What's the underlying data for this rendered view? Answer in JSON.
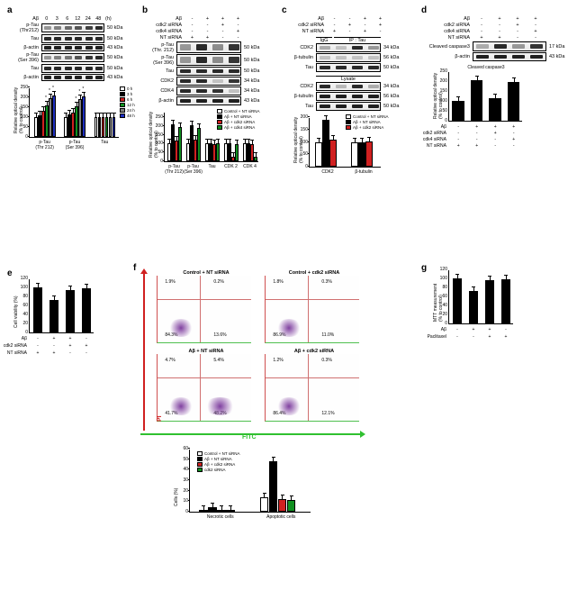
{
  "colors": {
    "white": "#ffffff",
    "black": "#000000",
    "red": "#d02020",
    "green": "#109020",
    "gray": "#808080",
    "blue": "#2030c0",
    "purple": "#8040a0",
    "lime": "#30c030"
  },
  "a": {
    "label": "a",
    "time_header": {
      "label": "Aβ",
      "values": [
        "0",
        "3",
        "6",
        "12",
        "24",
        "48"
      ],
      "unit": "(h)"
    },
    "blots": [
      {
        "label": "p-Tau\n(Thr212)",
        "mw": "50 kDa",
        "height": 10,
        "bands": [
          0.4,
          0.5,
          0.6,
          0.7,
          0.8,
          0.9
        ]
      },
      {
        "label": "Tau",
        "mw": "50 kDa",
        "height": 10,
        "bands": [
          0.9,
          0.9,
          0.9,
          0.9,
          0.9,
          0.9
        ]
      },
      {
        "label": "β-actin",
        "mw": "43 kDa",
        "height": 8,
        "bands": [
          0.95,
          0.95,
          0.95,
          0.95,
          0.95,
          0.95
        ]
      },
      {
        "label": "p-Tau\n(Ser 396)",
        "mw": "50 kDa",
        "height": 10,
        "bands": [
          0.4,
          0.5,
          0.55,
          0.7,
          0.85,
          0.9
        ]
      },
      {
        "label": "Tau",
        "mw": "50 kDa",
        "height": 10,
        "bands": [
          0.9,
          0.9,
          0.9,
          0.9,
          0.9,
          0.9
        ]
      },
      {
        "label": "β-actin",
        "mw": "43 kDa",
        "height": 8,
        "bands": [
          0.95,
          0.95,
          0.95,
          0.95,
          0.95,
          0.95
        ]
      }
    ],
    "chart": {
      "ylabel": "Relative optical density\n(% to control)",
      "ymax": 250,
      "ystep": 50,
      "groups": [
        "p-Tau\n(Thr 212)",
        "p-Tau\n(Ser 396)",
        "Tau"
      ],
      "legend": [
        "0 h",
        "3 h",
        "6 h",
        "12 h",
        "24 h",
        "48 h"
      ],
      "legend_colors": [
        "#ffffff",
        "#000000",
        "#d02020",
        "#109020",
        "#808080",
        "#2030c0"
      ],
      "data": [
        [
          100,
          110,
          130,
          160,
          195,
          210
        ],
        [
          100,
          115,
          125,
          155,
          190,
          205
        ],
        [
          100,
          98,
          102,
          100,
          99,
          101
        ]
      ],
      "sig": [
        [
          0,
          0,
          0,
          1,
          1,
          1
        ],
        [
          0,
          0,
          0,
          1,
          1,
          1
        ],
        [
          0,
          0,
          0,
          0,
          0,
          0
        ]
      ]
    }
  },
  "b": {
    "label": "b",
    "headers": [
      {
        "label": "Aβ",
        "vals": [
          "-",
          "+",
          "+",
          "+"
        ]
      },
      {
        "label": "cdk2 siRNA",
        "vals": [
          "-",
          "-",
          "+",
          "-"
        ]
      },
      {
        "label": "cdk4 siRNA",
        "vals": [
          "-",
          "-",
          "-",
          "+"
        ]
      },
      {
        "label": "NT siRNA",
        "vals": [
          "+",
          "+",
          "-",
          "-"
        ]
      }
    ],
    "blots": [
      {
        "label": "p-Tau\n(Thr. 212)",
        "mw": "50 kDa",
        "height": 13,
        "bands": [
          0.4,
          0.9,
          0.45,
          0.85
        ]
      },
      {
        "label": "p-Tau\n(Ser 396)",
        "mw": "50 kDa",
        "height": 13,
        "bands": [
          0.4,
          0.9,
          0.45,
          0.85
        ]
      },
      {
        "label": "Tau",
        "mw": "50 kDa",
        "height": 10,
        "bands": [
          0.9,
          0.9,
          0.9,
          0.9
        ]
      },
      {
        "label": "CDK2",
        "mw": "34 kDa",
        "height": 10,
        "bands": [
          0.9,
          0.9,
          0.2,
          0.85
        ]
      },
      {
        "label": "CDK4",
        "mw": "34 kDa",
        "height": 10,
        "bands": [
          0.9,
          0.9,
          0.85,
          0.2
        ]
      },
      {
        "label": "β-actin",
        "mw": "43 kDa",
        "height": 10,
        "bands": [
          0.95,
          0.95,
          0.95,
          0.95
        ]
      }
    ],
    "chart": {
      "ylabel": "Relative optical density\n(% to control)",
      "ymax": 280,
      "ystep": 50,
      "groups": [
        "p-Tau\n(Thr 212)",
        "p-Tau\n(Ser 396)",
        "Tau",
        "CDK 2",
        "CDK 4"
      ],
      "legend": [
        "Control + NT siRNA",
        "Aβ + NT siRNA",
        "Aβ + cdk2 siRNA",
        "Aβ + cdk4 siRNA"
      ],
      "legend_colors": [
        "#ffffff",
        "#000000",
        "#d02020",
        "#109020"
      ],
      "data": [
        [
          100,
          210,
          115,
          195
        ],
        [
          100,
          205,
          120,
          190
        ],
        [
          100,
          100,
          98,
          101
        ],
        [
          100,
          102,
          25,
          98
        ],
        [
          100,
          100,
          97,
          24
        ]
      ]
    }
  },
  "c": {
    "label": "c",
    "headers": [
      {
        "label": "Aβ",
        "vals": [
          "-",
          "-",
          "+",
          "+"
        ]
      },
      {
        "label": "cdk2 siRNA",
        "vals": [
          "-",
          "+",
          "-",
          "+"
        ]
      },
      {
        "label": "NT siRNA",
        "vals": [
          "+",
          "-",
          "+",
          "-"
        ]
      }
    ],
    "ip_header": {
      "left": "IgG",
      "right": "IP : Tau"
    },
    "ip_blots": [
      {
        "label": "CDK2",
        "mw": "34 kDa",
        "height": 10,
        "bands": [
          0.3,
          0.2,
          0.9,
          0.4
        ]
      },
      {
        "label": "β-tubulin",
        "mw": "56 kDa",
        "height": 10,
        "bands": [
          0.2,
          0.2,
          0.2,
          0.2
        ]
      },
      {
        "label": "Tau",
        "mw": "50 kDa",
        "height": 10,
        "bands": [
          0.9,
          0.9,
          0.9,
          0.9
        ]
      }
    ],
    "lysate_label": "Lysate",
    "lysate_blots": [
      {
        "label": "CDK2",
        "mw": "34 kDa",
        "height": 10,
        "bands": [
          0.9,
          0.25,
          0.9,
          0.3
        ]
      },
      {
        "label": "β-tubulin",
        "mw": "56 kDa",
        "height": 10,
        "bands": [
          0.95,
          0.95,
          0.95,
          0.95
        ]
      },
      {
        "label": "Tau",
        "mw": "50 kDa",
        "height": 10,
        "bands": [
          0.95,
          0.95,
          0.95,
          0.95
        ]
      }
    ],
    "chart": {
      "ylabel": "Relative optical density\n(% to control)",
      "ymax": 200,
      "ystep": 50,
      "groups": [
        "CDK2",
        "β-tubulin"
      ],
      "legend": [
        "Control + NT siRNA",
        "Aβ + NT siRNA",
        "Aβ + cdk2 siRNA"
      ],
      "legend_colors": [
        "#ffffff",
        "#000000",
        "#d02020"
      ],
      "data": [
        [
          100,
          190,
          110
        ],
        [
          100,
          98,
          102
        ]
      ]
    }
  },
  "d": {
    "label": "d",
    "headers": [
      {
        "label": "Aβ",
        "vals": [
          "-",
          "+",
          "+",
          "+"
        ]
      },
      {
        "label": "cdk2 siRNA",
        "vals": [
          "-",
          "-",
          "+",
          "-"
        ]
      },
      {
        "label": "cdk4 siRNA",
        "vals": [
          "-",
          "-",
          "-",
          "+"
        ]
      },
      {
        "label": "NT siRNA",
        "vals": [
          "+",
          "+",
          "-",
          "-"
        ]
      }
    ],
    "blots": [
      {
        "label": "Cleaved caspase3",
        "mw": "17 kDa",
        "height": 11,
        "bands": [
          0.3,
          0.9,
          0.4,
          0.85
        ]
      },
      {
        "label": "β-actin",
        "mw": "43 kDa",
        "height": 10,
        "bands": [
          0.95,
          0.95,
          0.95,
          0.95
        ]
      }
    ],
    "chart": {
      "title": "Cleaved caspase3",
      "ylabel": "Relative optical density\n(% to control)",
      "ymax": 250,
      "ystep": 50,
      "data": [
        100,
        205,
        115,
        195
      ],
      "x_headers": [
        {
          "label": "Aβ",
          "vals": [
            "-",
            "+",
            "+",
            "+"
          ]
        },
        {
          "label": "cdk2 siRNA",
          "vals": [
            "-",
            "-",
            "+",
            "-"
          ]
        },
        {
          "label": "cdk4 siRNA",
          "vals": [
            "-",
            "-",
            "-",
            "+"
          ]
        },
        {
          "label": "NT siRNA",
          "vals": [
            "+",
            "+",
            "-",
            "-"
          ]
        }
      ]
    }
  },
  "e": {
    "label": "e",
    "chart": {
      "ylabel": "Cell viability (%)",
      "ymax": 120,
      "ystep": 20,
      "data": [
        100,
        72,
        95,
        98
      ],
      "x_headers": [
        {
          "label": "Aβ",
          "vals": [
            "-",
            "+",
            "+",
            "-"
          ]
        },
        {
          "label": "cdk2 siRNA",
          "vals": [
            "-",
            "-",
            "+",
            "+"
          ]
        },
        {
          "label": "NT siRNA",
          "vals": [
            "+",
            "+",
            "-",
            "-"
          ]
        }
      ]
    }
  },
  "f": {
    "label": "f",
    "plots": [
      {
        "title": "Control + NT siRNA",
        "q": [
          "1.9%",
          "0.2%",
          "84.3%",
          "13.6%"
        ]
      },
      {
        "title": "Control + cdk2 siRNA",
        "q": [
          "1.8%",
          "0.3%",
          "86.9%",
          "11.0%"
        ]
      },
      {
        "title": "Aβ + NT siRNA",
        "q": [
          "4.7%",
          "5.4%",
          "41.7%",
          "48.2%"
        ]
      },
      {
        "title": "Aβ + cdk2 siRNA",
        "q": [
          "1.2%",
          "0.3%",
          "86.4%",
          "12.1%"
        ]
      }
    ],
    "ylabel": "PI",
    "xlabel": "FITC",
    "chart": {
      "ylabel": "Cells (%)",
      "ymax": 60,
      "ystep": 10,
      "groups": [
        "Necrotic cells",
        "Apoptotic cells"
      ],
      "legend": [
        "Control + NT siRNA",
        "Aβ + NT siRNA",
        "Aβ + cdk2 siRNA",
        "cdk2 siRNA"
      ],
      "legend_colors": [
        "#ffffff",
        "#000000",
        "#d02020",
        "#109020"
      ],
      "data": [
        [
          2,
          4.5,
          1.5,
          1.8
        ],
        [
          14,
          48,
          12,
          11
        ]
      ]
    }
  },
  "g": {
    "label": "g",
    "chart": {
      "ylabel": "MTT measurement\n(% to control)",
      "ymax": 120,
      "ystep": 20,
      "data": [
        100,
        73,
        96,
        99
      ],
      "x_headers": [
        {
          "label": "Aβ",
          "vals": [
            "-",
            "+",
            "+",
            "-"
          ]
        },
        {
          "label": "Paclitaxel",
          "vals": [
            "-",
            "-",
            "+",
            "+"
          ]
        }
      ]
    }
  }
}
